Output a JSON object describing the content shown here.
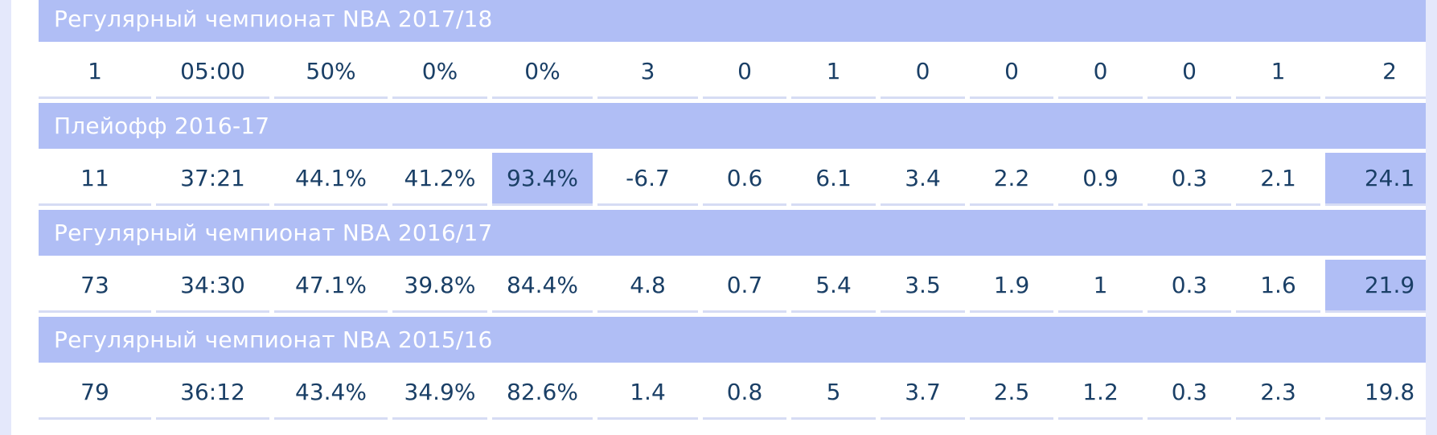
{
  "seasons": [
    {
      "title": "Регулярный чемпионат NBA 2017/18",
      "values": [
        "1",
        "05:00",
        "50%",
        "0%",
        "0%",
        "3",
        "0",
        "1",
        "0",
        "0",
        "0",
        "0",
        "1",
        "2"
      ],
      "highlighted_columns": []
    },
    {
      "title": "Плейофф 2016-17",
      "values": [
        "11",
        "37:21",
        "44.1%",
        "41.2%",
        "93.4%",
        "-6.7",
        "0.6",
        "6.1",
        "3.4",
        "2.2",
        "0.9",
        "0.3",
        "2.1",
        "24.1"
      ],
      "highlighted_columns": [
        4,
        13
      ]
    },
    {
      "title": "Регулярный чемпионат NBA 2016/17",
      "values": [
        "73",
        "34:30",
        "47.1%",
        "39.8%",
        "84.4%",
        "4.8",
        "0.7",
        "5.4",
        "3.5",
        "1.9",
        "1",
        "0.3",
        "1.6",
        "21.9"
      ],
      "highlighted_columns": [
        13
      ]
    },
    {
      "title": "Регулярный чемпионат NBA 2015/16",
      "values": [
        "79",
        "36:12",
        "43.4%",
        "34.9%",
        "82.6%",
        "1.4",
        "0.8",
        "5",
        "3.7",
        "2.5",
        "1.2",
        "0.3",
        "2.3",
        "19.8"
      ],
      "highlighted_columns": []
    }
  ],
  "colors": {
    "page_background": "#e4e8fb",
    "header_background": "#b0bef5",
    "highlight_background": "#b0bef5",
    "header_text": "#ffffff",
    "cell_text": "#1a3f66",
    "row_separator": "#d6dcf4"
  }
}
